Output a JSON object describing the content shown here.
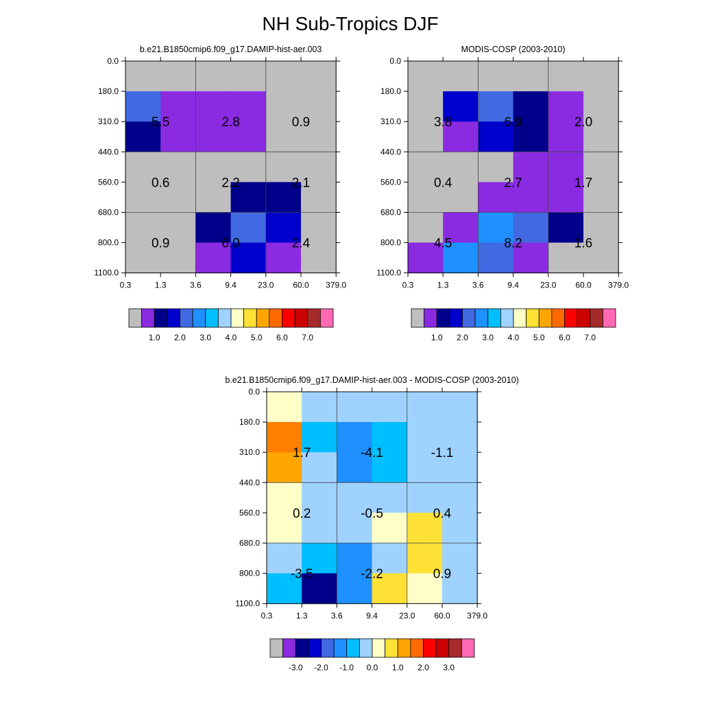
{
  "title": "NH Sub-Tropics DJF",
  "chart_data": [
    {
      "type": "heatmap",
      "panel": "model",
      "title": "b.e21.B1850cmip6.f09_g17.DAMIP-hist-aer.003",
      "x_ticks": [
        "0.3",
        "1.3",
        "3.6",
        "9.4",
        "23.0",
        "60.0",
        "379.0"
      ],
      "y_ticks": [
        "0.0",
        "180.0",
        "310.0",
        "440.0",
        "560.0",
        "680.0",
        "800.0",
        "1100.0"
      ],
      "cells": [
        [
          "#BEBEBE",
          "#BEBEBE",
          "#BEBEBE",
          "#BEBEBE",
          "#BEBEBE",
          "#BEBEBE"
        ],
        [
          "#4169E1",
          "#8A2BE2",
          "#8A2BE2",
          "#8A2BE2",
          "#BEBEBE",
          "#BEBEBE"
        ],
        [
          "#00008B",
          "#8A2BE2",
          "#8A2BE2",
          "#8A2BE2",
          "#BEBEBE",
          "#BEBEBE"
        ],
        [
          "#BEBEBE",
          "#BEBEBE",
          "#BEBEBE",
          "#BEBEBE",
          "#BEBEBE",
          "#BEBEBE"
        ],
        [
          "#BEBEBE",
          "#BEBEBE",
          "#BEBEBE",
          "#00008B",
          "#00008B",
          "#BEBEBE"
        ],
        [
          "#BEBEBE",
          "#BEBEBE",
          "#00008B",
          "#4169E1",
          "#0000CD",
          "#BEBEBE"
        ],
        [
          "#BEBEBE",
          "#BEBEBE",
          "#8A2BE2",
          "#0000CD",
          "#8A2BE2",
          "#BEBEBE"
        ]
      ],
      "block_labels": [
        [
          "5.5",
          "2.8",
          "0.9"
        ],
        [
          "0.6",
          "2.2",
          "2.1"
        ],
        [
          "0.9",
          "6.0",
          "2.4"
        ]
      ],
      "colorbar": {
        "colors": [
          "#BEBEBE",
          "#8A2BE2",
          "#00008B",
          "#0000CD",
          "#4169E1",
          "#1E90FF",
          "#00BFFF",
          "#A0D2FF",
          "#FFFFC8",
          "#FFE135",
          "#FFA500",
          "#FF6A00",
          "#FF0000",
          "#CD0000",
          "#A52A2A",
          "#FF69B4"
        ],
        "labels": [
          "1.0",
          "2.0",
          "3.0",
          "4.0",
          "5.0",
          "6.0",
          "7.0"
        ]
      }
    },
    {
      "type": "heatmap",
      "panel": "observations",
      "title": "MODIS-COSP (2003-2010)",
      "x_ticks": [
        "0.3",
        "1.3",
        "3.6",
        "9.4",
        "23.0",
        "60.0",
        "379.0"
      ],
      "y_ticks": [
        "0.0",
        "180.0",
        "310.0",
        "440.0",
        "560.0",
        "680.0",
        "800.0",
        "1100.0"
      ],
      "cells": [
        [
          "#BEBEBE",
          "#BEBEBE",
          "#BEBEBE",
          "#BEBEBE",
          "#BEBEBE",
          "#BEBEBE"
        ],
        [
          "#BEBEBE",
          "#0000CD",
          "#4169E1",
          "#00008B",
          "#8A2BE2",
          "#BEBEBE"
        ],
        [
          "#BEBEBE",
          "#8A2BE2",
          "#0000CD",
          "#00008B",
          "#8A2BE2",
          "#BEBEBE"
        ],
        [
          "#BEBEBE",
          "#BEBEBE",
          "#BEBEBE",
          "#8A2BE2",
          "#8A2BE2",
          "#BEBEBE"
        ],
        [
          "#BEBEBE",
          "#BEBEBE",
          "#8A2BE2",
          "#8A2BE2",
          "#8A2BE2",
          "#BEBEBE"
        ],
        [
          "#BEBEBE",
          "#8A2BE2",
          "#1E90FF",
          "#4169E1",
          "#00008B",
          "#BEBEBE"
        ],
        [
          "#8A2BE2",
          "#1E90FF",
          "#4169E1",
          "#8A2BE2",
          "#BEBEBE",
          "#BEBEBE"
        ]
      ],
      "block_labels": [
        [
          "3.8",
          "6.9",
          "2.0"
        ],
        [
          "0.4",
          "2.7",
          "1.7"
        ],
        [
          "4.5",
          "8.2",
          "1.6"
        ]
      ],
      "colorbar": {
        "colors": [
          "#BEBEBE",
          "#8A2BE2",
          "#00008B",
          "#0000CD",
          "#4169E1",
          "#1E90FF",
          "#00BFFF",
          "#A0D2FF",
          "#FFFFC8",
          "#FFE135",
          "#FFA500",
          "#FF6A00",
          "#FF0000",
          "#CD0000",
          "#A52A2A",
          "#FF69B4"
        ],
        "labels": [
          "1.0",
          "2.0",
          "3.0",
          "4.0",
          "5.0",
          "6.0",
          "7.0"
        ]
      }
    },
    {
      "type": "heatmap",
      "panel": "difference",
      "title": "b.e21.B1850cmip6.f09_g17.DAMIP-hist-aer.003 - MODIS-COSP (2003-2010)",
      "x_ticks": [
        "0.3",
        "1.3",
        "3.6",
        "9.4",
        "23.0",
        "60.0",
        "379.0"
      ],
      "y_ticks": [
        "0.0",
        "180.0",
        "310.0",
        "440.0",
        "560.0",
        "680.0",
        "800.0",
        "1100.0"
      ],
      "cells": [
        [
          "#FFFFC8",
          "#A0D2FF",
          "#A0D2FF",
          "#A0D2FF",
          "#A0D2FF",
          "#A0D2FF"
        ],
        [
          "#FF7F00",
          "#00BFFF",
          "#1E90FF",
          "#00BFFF",
          "#A0D2FF",
          "#A0D2FF"
        ],
        [
          "#FFA500",
          "#A0D2FF",
          "#1E90FF",
          "#00BFFF",
          "#A0D2FF",
          "#A0D2FF"
        ],
        [
          "#FFFFC8",
          "#A0D2FF",
          "#A0D2FF",
          "#A0D2FF",
          "#A0D2FF",
          "#A0D2FF"
        ],
        [
          "#FFFFC8",
          "#A0D2FF",
          "#A0D2FF",
          "#FFFFC8",
          "#FFE135",
          "#A0D2FF"
        ],
        [
          "#A0D2FF",
          "#00BFFF",
          "#1E90FF",
          "#A0D2FF",
          "#FFE135",
          "#A0D2FF"
        ],
        [
          "#00BFFF",
          "#00008B",
          "#1E90FF",
          "#FFE135",
          "#FFFFC8",
          "#A0D2FF"
        ]
      ],
      "block_labels": [
        [
          "1.7",
          "-4.1",
          "-1.1"
        ],
        [
          "0.2",
          "-0.5",
          "0.4"
        ],
        [
          "-3.5",
          "-2.2",
          "0.9"
        ]
      ],
      "colorbar": {
        "colors": [
          "#BEBEBE",
          "#8A2BE2",
          "#00008B",
          "#0000CD",
          "#4169E1",
          "#1E90FF",
          "#00BFFF",
          "#A0D2FF",
          "#FFFFC8",
          "#FFE135",
          "#FFA500",
          "#FF6A00",
          "#FF0000",
          "#CD0000",
          "#A52A2A",
          "#FF69B4"
        ],
        "labels": [
          "-3.0",
          "-2.0",
          "-1.0",
          "0.0",
          "1.0",
          "2.0",
          "3.0"
        ]
      }
    }
  ]
}
